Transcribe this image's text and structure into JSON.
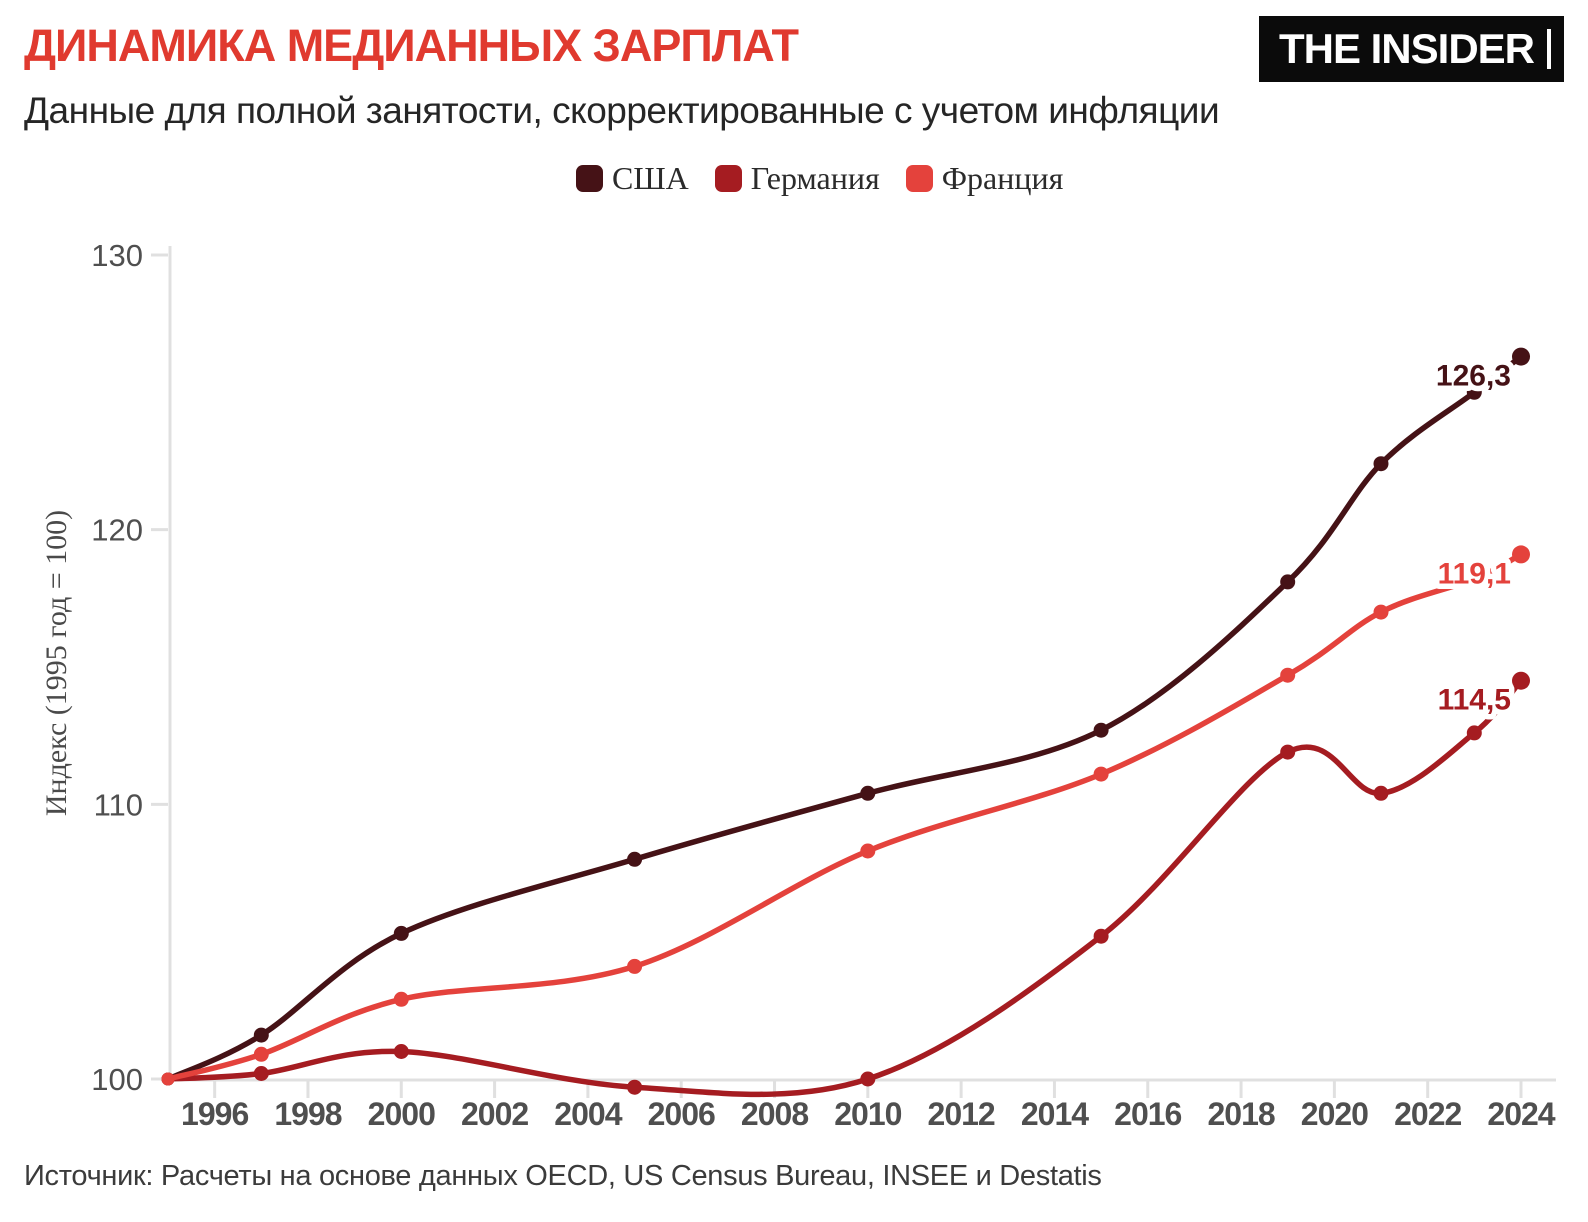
{
  "header": {
    "title": "ДИНАМИКА МЕДИАННЫХ ЗАРПЛАТ",
    "subtitle": "Данные для полной занятости, скорректированные с учетом инфляции",
    "logo_text": "THE INSIDER"
  },
  "legend": [
    {
      "label": "США",
      "color": "#451216"
    },
    {
      "label": "Германия",
      "color": "#a51c21"
    },
    {
      "label": "Франция",
      "color": "#e4423c"
    }
  ],
  "chart_data": {
    "type": "line",
    "title": "ДИНАМИКА МЕДИАННЫХ ЗАРПЛАТ",
    "subtitle": "Данные для полной занятости, скорректированные с учетом инфляции",
    "xlabel": "",
    "ylabel": "Индекс (1995 год = 100)",
    "xlim": [
      1995,
      2024
    ],
    "ylim": [
      100,
      130
    ],
    "yticks": [
      100,
      110,
      120,
      130
    ],
    "xticks": [
      1996,
      1998,
      2000,
      2002,
      2004,
      2006,
      2008,
      2010,
      2012,
      2014,
      2016,
      2018,
      2020,
      2022,
      2024
    ],
    "grid": false,
    "legend_position": "top-center",
    "x": [
      1995,
      1997,
      2000,
      2005,
      2010,
      2015,
      2019,
      2021,
      2023,
      2024
    ],
    "series": [
      {
        "name": "США",
        "color": "#451216",
        "values": [
          100,
          101.6,
          105.3,
          108.0,
          110.4,
          112.7,
          118.1,
          122.4,
          125.0,
          126.3
        ],
        "end_label": "126,3"
      },
      {
        "name": "Германия",
        "color": "#a51c21",
        "values": [
          100,
          100.2,
          101.0,
          99.7,
          100.0,
          105.2,
          111.9,
          110.4,
          112.6,
          114.5
        ],
        "end_label": "114,5"
      },
      {
        "name": "Франция",
        "color": "#e4423c",
        "values": [
          100,
          100.9,
          102.9,
          104.1,
          108.3,
          111.1,
          114.7,
          117.0,
          118.2,
          119.1
        ],
        "end_label": "119,1"
      }
    ]
  },
  "footer": {
    "source": "Источник: Расчеты на основе данных OECD, US Census Bureau, INSEE и Destatis"
  },
  "theme": {
    "accent_red": "#e03a2f",
    "logo_bg": "#0b0b0b",
    "axis_text": "#4f4f4f",
    "axis_line": "#e0e0e0",
    "text_dark": "#262626"
  }
}
